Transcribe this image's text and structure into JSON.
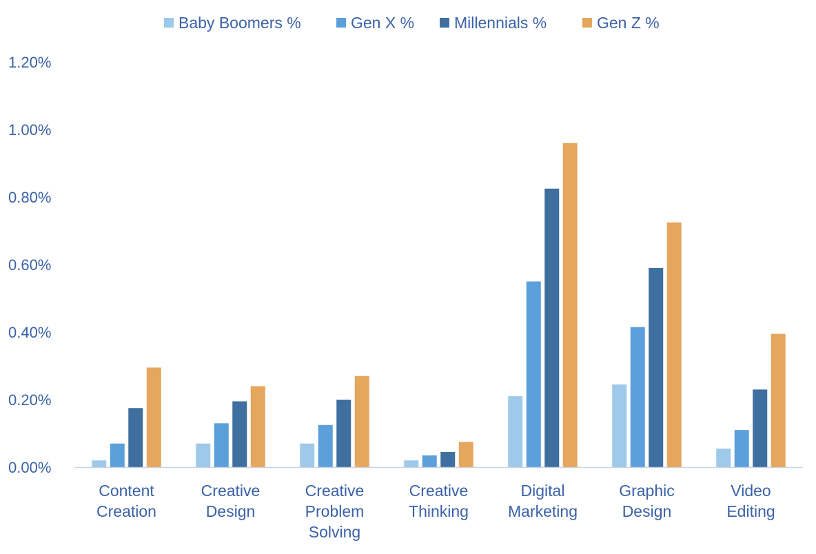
{
  "chart_data": {
    "type": "bar",
    "categories": [
      [
        "Content",
        "Creation"
      ],
      [
        "Creative",
        "Design"
      ],
      [
        "Creative",
        "Problem",
        "Solving"
      ],
      [
        "Creative",
        "Thinking"
      ],
      [
        "Digital",
        "Marketing"
      ],
      [
        "Graphic",
        "Design"
      ],
      [
        "Video",
        "Editing"
      ]
    ],
    "series": [
      {
        "name": "Baby Boomers %",
        "color": "#9dc9ea",
        "values": [
          0.02,
          0.07,
          0.07,
          0.02,
          0.21,
          0.245,
          0.055
        ]
      },
      {
        "name": "Gen X %",
        "color": "#5b9fdb",
        "values": [
          0.07,
          0.13,
          0.125,
          0.035,
          0.55,
          0.415,
          0.11
        ]
      },
      {
        "name": "Millennials %",
        "color": "#3f6f9f",
        "values": [
          0.175,
          0.195,
          0.2,
          0.045,
          0.825,
          0.59,
          0.23
        ]
      },
      {
        "name": "Gen Z %",
        "color": "#e5a65e",
        "values": [
          0.295,
          0.24,
          0.27,
          0.075,
          0.96,
          0.725,
          0.395
        ]
      }
    ],
    "ylim": [
      0,
      1.2
    ],
    "yticks": [
      "0.00%",
      "0.20%",
      "0.40%",
      "0.60%",
      "0.80%",
      "1.00%",
      "1.20%"
    ],
    "legend_position": "top",
    "grid": false
  }
}
